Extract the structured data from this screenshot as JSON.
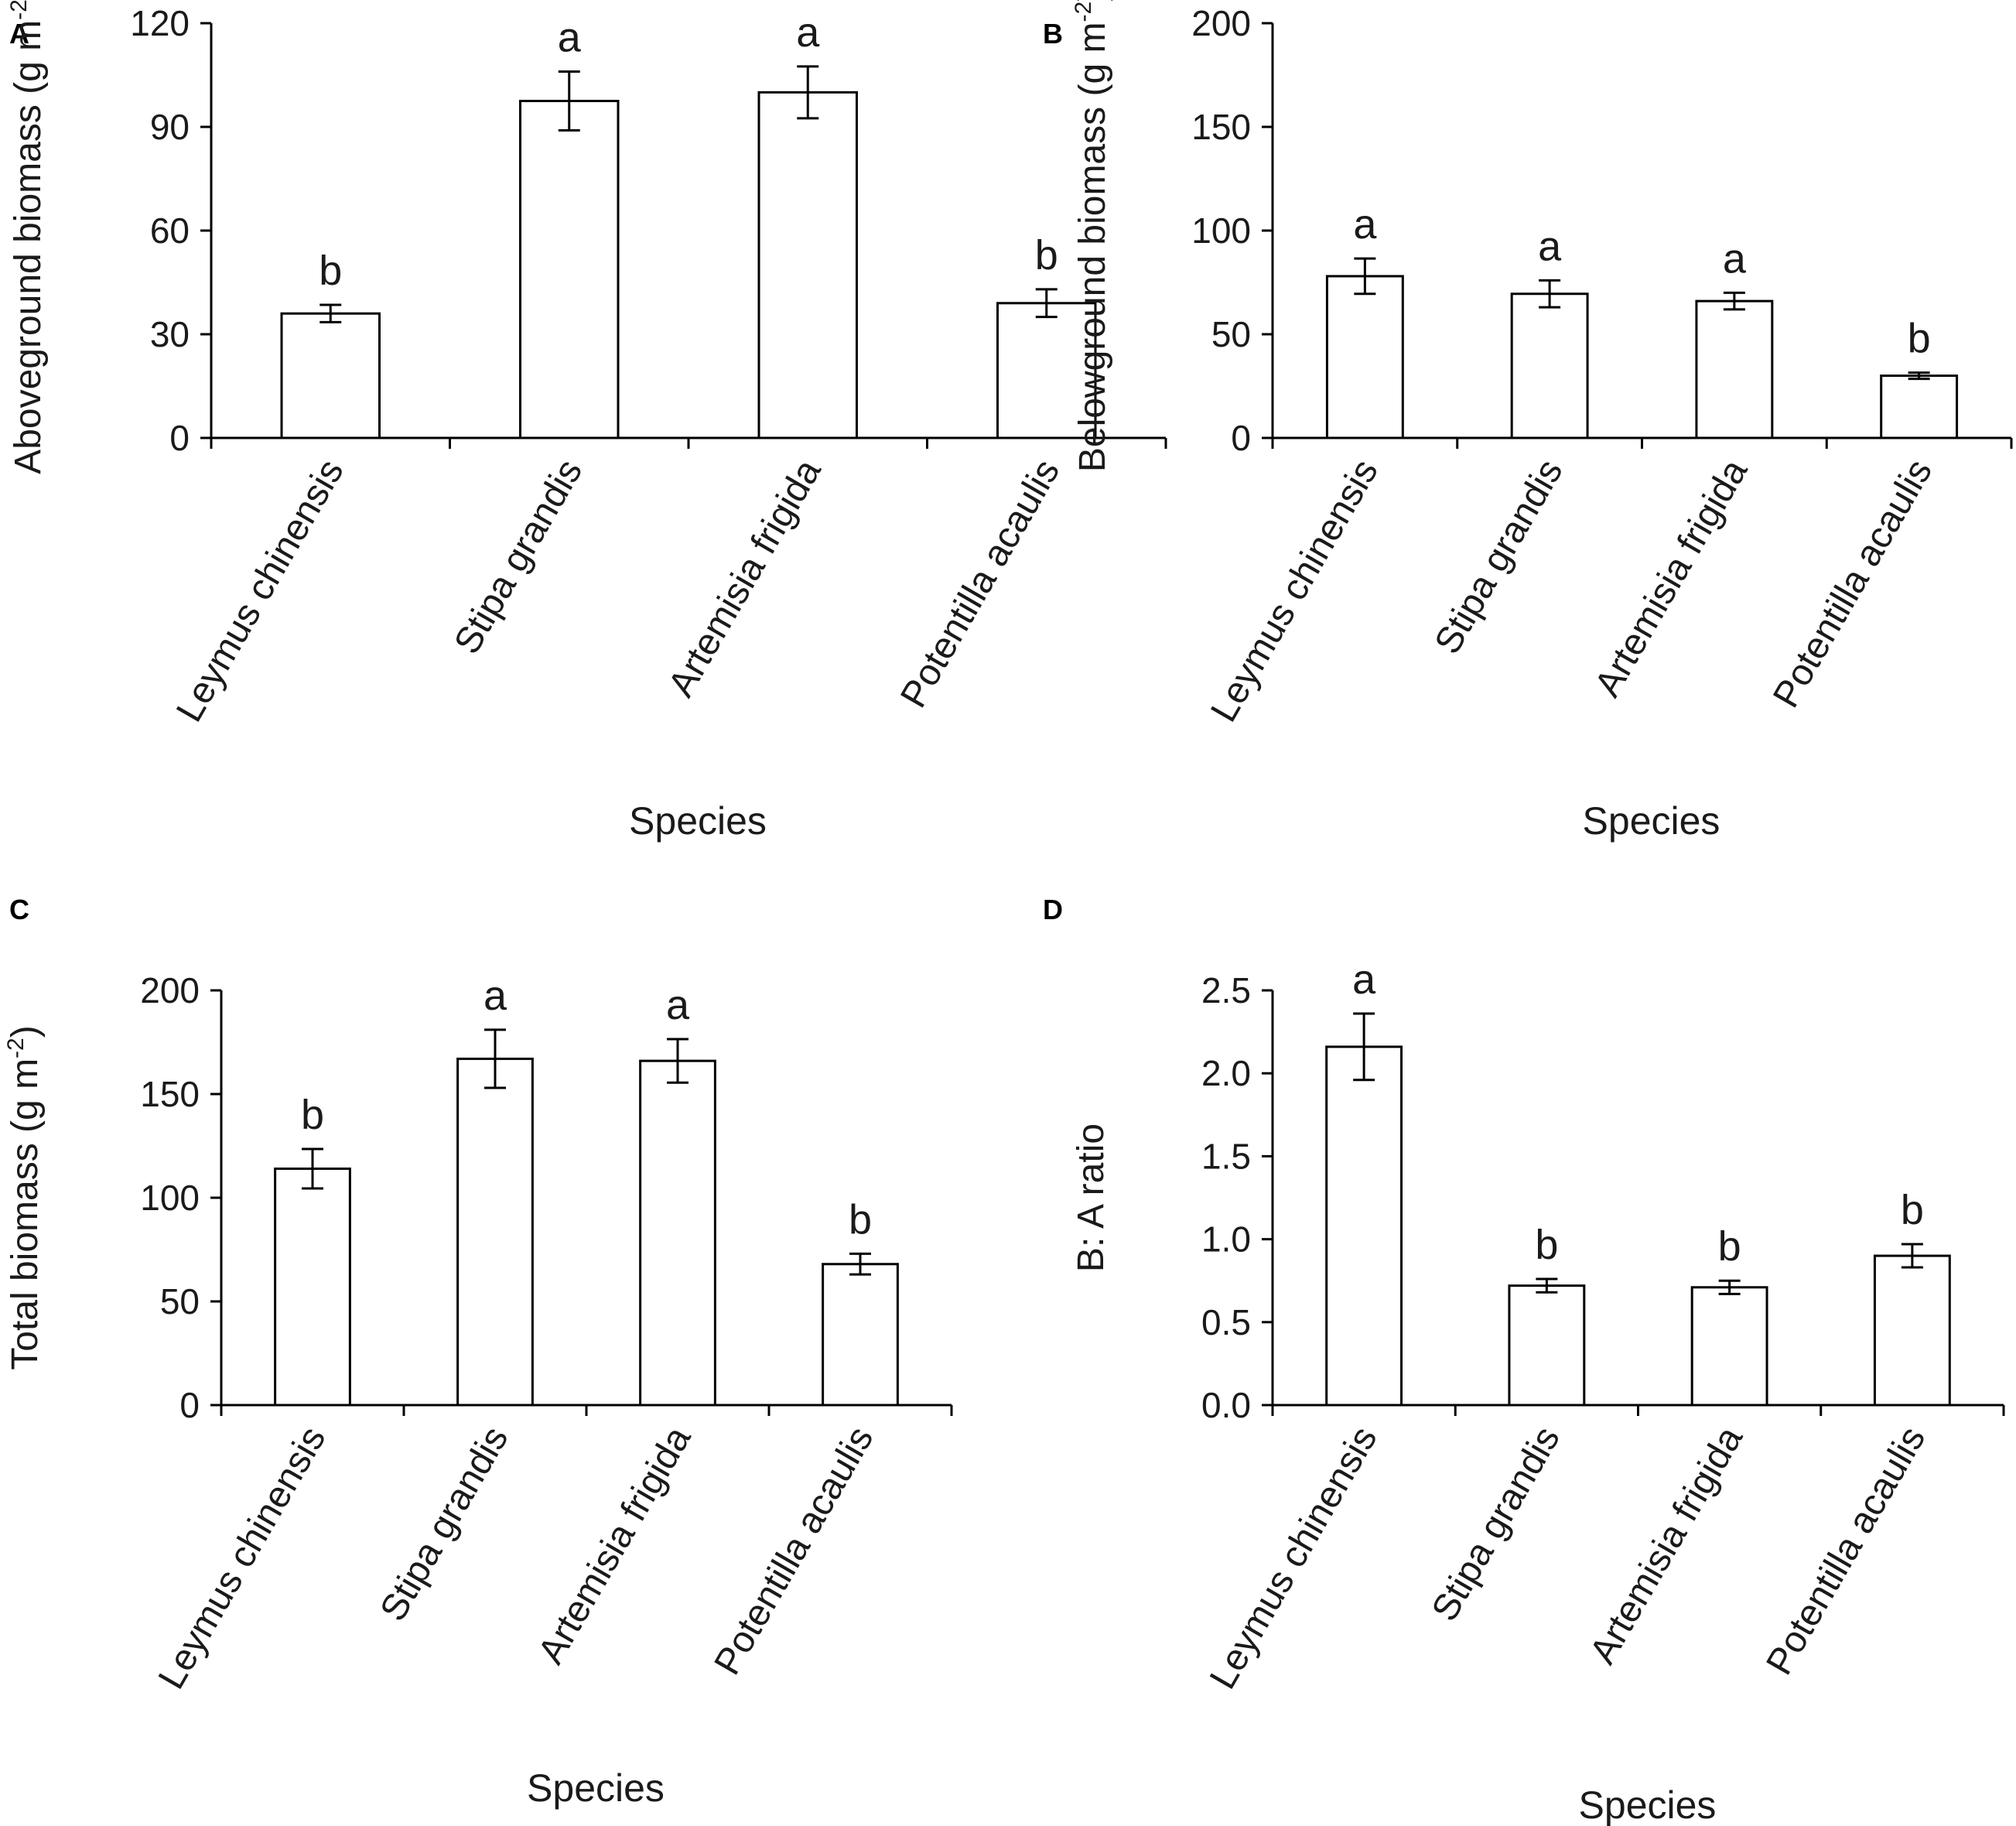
{
  "chart_data": [
    {
      "panel": "A",
      "type": "bar",
      "categories": [
        "Leymus chinensis",
        "Stipa grandis",
        "Artemisia frigida",
        "Potentilla acaulis"
      ],
      "values": [
        36,
        97.5,
        100,
        39
      ],
      "errors": [
        2.5,
        8.5,
        7.5,
        4
      ],
      "letters": [
        "b",
        "a",
        "a",
        "b"
      ],
      "ylabel": "Aboveground biomass (g m",
      "ylabel_sup": "-2",
      "ylabel_end": ")",
      "xlabel": "Species",
      "ylim": [
        0,
        120
      ],
      "yticks": [
        0,
        30,
        60,
        90,
        120
      ],
      "ytick_labels": [
        "0",
        "30",
        "60",
        "90",
        "120"
      ],
      "grid": false
    },
    {
      "panel": "B",
      "type": "bar",
      "categories": [
        "Leymus chinensis",
        "Stipa grandis",
        "Artemisia frigida",
        "Potentilla acaulis"
      ],
      "values": [
        78,
        69.5,
        66,
        30
      ],
      "errors": [
        8.5,
        6.5,
        4,
        1.5
      ],
      "letters": [
        "a",
        "a",
        "a",
        "b"
      ],
      "ylabel": "Belowground biomass (g m",
      "ylabel_sup": "-2",
      "ylabel_end": ")",
      "xlabel": "Species",
      "ylim": [
        0,
        200
      ],
      "yticks": [
        0,
        50,
        100,
        150,
        200
      ],
      "ytick_labels": [
        "0",
        "50",
        "100",
        "150",
        "200"
      ],
      "grid": false
    },
    {
      "panel": "C",
      "type": "bar",
      "categories": [
        "Leymus chinensis",
        "Stipa grandis",
        "Artemisia frigida",
        "Potentilla acaulis"
      ],
      "values": [
        114,
        167,
        166,
        68
      ],
      "errors": [
        9.5,
        14,
        10.5,
        5
      ],
      "letters": [
        "b",
        "a",
        "a",
        "b"
      ],
      "ylabel": "Total biomass (g m",
      "ylabel_sup": "-2",
      "ylabel_end": ")",
      "xlabel": "Species",
      "ylim": [
        0,
        200
      ],
      "yticks": [
        0,
        50,
        100,
        150,
        200
      ],
      "ytick_labels": [
        "0",
        "50",
        "100",
        "150",
        "200"
      ],
      "grid": false
    },
    {
      "panel": "D",
      "type": "bar",
      "categories": [
        "Leymus chinensis",
        "Stipa grandis",
        "Artemisia frigida",
        "Potentilla acaulis"
      ],
      "values": [
        2.16,
        0.72,
        0.71,
        0.9
      ],
      "errors": [
        0.2,
        0.04,
        0.04,
        0.07
      ],
      "letters": [
        "a",
        "b",
        "b",
        "b"
      ],
      "ylabel": "B: A ratio",
      "ylabel_sup": "",
      "ylabel_end": "",
      "xlabel": "Species",
      "ylim": [
        0,
        2.5
      ],
      "yticks": [
        0,
        0.5,
        1.0,
        1.5,
        2.0,
        2.5
      ],
      "ytick_labels": [
        "0.0",
        "0.5",
        "1.0",
        "1.5",
        "2.0",
        "2.5"
      ],
      "grid": false
    }
  ]
}
